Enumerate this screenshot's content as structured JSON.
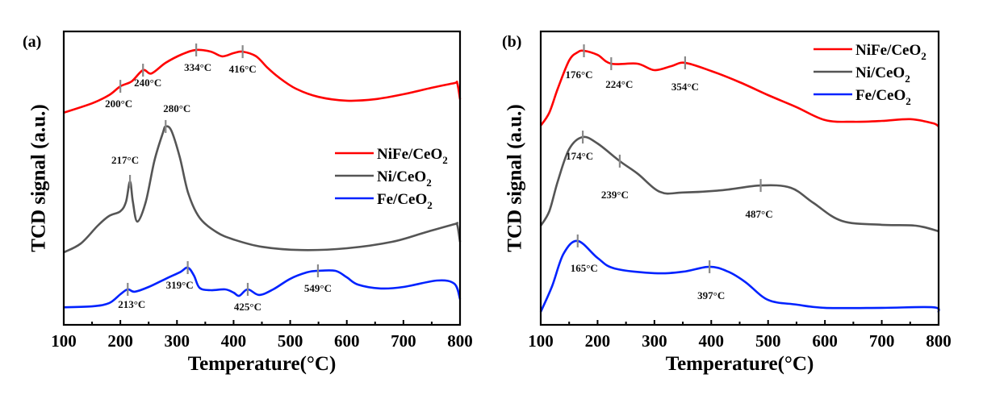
{
  "chart_data": [
    {
      "type": "line",
      "panel_label": "(a)",
      "title": "",
      "xlabel": "Temperature(°C)",
      "ylabel": "TCD signal (a.u.)",
      "xlim": [
        100,
        800
      ],
      "ylim": [
        0,
        100
      ],
      "xticks": [
        100,
        200,
        300,
        400,
        500,
        600,
        700,
        800
      ],
      "yticks": [],
      "grid": false,
      "legend_position": "center-right",
      "series": [
        {
          "name": "NiFe/CeO2",
          "color": "#ff0000",
          "x": [
            100,
            150,
            180,
            200,
            220,
            240,
            255,
            280,
            310,
            334,
            360,
            380,
            400,
            416,
            440,
            460,
            480,
            510,
            550,
            600,
            650,
            700,
            750,
            790,
            795,
            800
          ],
          "y": [
            72.3,
            75.5,
            78.3,
            81.3,
            83.0,
            86.8,
            85.7,
            89.3,
            92.3,
            93.7,
            93.1,
            91.5,
            92.6,
            93.1,
            91.5,
            87.6,
            84.3,
            80.5,
            77.7,
            76.4,
            76.9,
            78.6,
            80.8,
            82.4,
            82.4,
            76.9
          ],
          "peaks": [
            {
              "x": 200,
              "label": "200°C",
              "pos": "below"
            },
            {
              "x": 240,
              "label": "240°C",
              "pos": "below"
            },
            {
              "x": 334,
              "label": "334°C",
              "pos": "below"
            },
            {
              "x": 416,
              "label": "416°C",
              "pos": "below"
            }
          ]
        },
        {
          "name": "Ni/CeO2",
          "color": "#555555",
          "x": [
            100,
            130,
            160,
            180,
            200,
            210,
            217,
            222,
            230,
            245,
            260,
            275,
            280,
            290,
            305,
            320,
            340,
            370,
            400,
            450,
            520,
            600,
            680,
            740,
            790,
            795,
            800
          ],
          "y": [
            24.7,
            27.7,
            33.8,
            37.1,
            38.7,
            42.0,
            48.9,
            42.0,
            35.2,
            42.0,
            55.8,
            65.4,
            67.6,
            66.2,
            57.1,
            44.8,
            36.5,
            31.6,
            29.1,
            26.6,
            25.5,
            26.1,
            28.3,
            31.6,
            34.3,
            34.1,
            28.3
          ],
          "peaks": [
            {
              "x": 217,
              "label": "217°C",
              "pos": "above"
            },
            {
              "x": 280,
              "label": "280°C",
              "pos": "above"
            }
          ]
        },
        {
          "name": "Fe/CeO2",
          "color": "#0022ff",
          "x": [
            100,
            150,
            180,
            200,
            213,
            225,
            250,
            280,
            305,
            319,
            330,
            340,
            360,
            385,
            400,
            410,
            425,
            445,
            470,
            500,
            530,
            549,
            580,
            600,
            620,
            660,
            700,
            760,
            790,
            800
          ],
          "y": [
            6.0,
            6.3,
            7.4,
            10.4,
            12.1,
            11.3,
            12.9,
            15.7,
            17.9,
            19.5,
            16.8,
            12.6,
            11.8,
            12.1,
            11.0,
            9.9,
            12.1,
            10.2,
            12.1,
            15.7,
            17.9,
            18.4,
            18.4,
            16.2,
            13.7,
            12.4,
            12.9,
            15.1,
            14.0,
            8.8
          ],
          "peaks": [
            {
              "x": 213,
              "label": "213°C",
              "pos": "below"
            },
            {
              "x": 319,
              "label": "319°C",
              "pos": "below"
            },
            {
              "x": 425,
              "label": "425°C",
              "pos": "below"
            },
            {
              "x": 549,
              "label": "549°C",
              "pos": "below"
            }
          ]
        }
      ]
    },
    {
      "type": "line",
      "panel_label": "(b)",
      "title": "",
      "xlabel": "Temperature(°C)",
      "ylabel": "TCD signal (a.u.)",
      "xlim": [
        100,
        800
      ],
      "ylim": [
        0,
        100
      ],
      "xticks": [
        100,
        200,
        300,
        400,
        500,
        600,
        700,
        800
      ],
      "yticks": [],
      "grid": false,
      "legend_position": "top-right",
      "series": [
        {
          "name": "NiFe/CeO2",
          "color": "#ff0000",
          "x": [
            100,
            115,
            130,
            150,
            165,
            176,
            200,
            224,
            270,
            300,
            330,
            354,
            400,
            450,
            500,
            550,
            600,
            650,
            700,
            750,
            790,
            800
          ],
          "y": [
            67.9,
            72.3,
            80.5,
            90.1,
            92.9,
            93.4,
            92.0,
            89.0,
            89.0,
            86.8,
            88.2,
            89.3,
            86.5,
            82.7,
            78.3,
            74.2,
            69.8,
            69.2,
            69.5,
            70.1,
            68.7,
            67.6
          ],
          "peaks": [
            {
              "x": 176,
              "label": "176°C",
              "pos": "below"
            },
            {
              "x": 224,
              "label": "224°C",
              "pos": "below"
            },
            {
              "x": 354,
              "label": "354°C",
              "pos": "below"
            }
          ]
        },
        {
          "name": "Ni/CeO2",
          "color": "#555555",
          "x": [
            100,
            115,
            130,
            150,
            174,
            200,
            239,
            270,
            310,
            350,
            420,
            487,
            540,
            580,
            630,
            700,
            760,
            800
          ],
          "y": [
            33.8,
            38.7,
            48.9,
            59.9,
            64.0,
            61.8,
            55.8,
            51.6,
            45.3,
            45.1,
            45.9,
            47.5,
            46.7,
            41.5,
            35.4,
            34.1,
            33.8,
            31.9
          ],
          "peaks": [
            {
              "x": 174,
              "label": "174°C",
              "pos": "below"
            },
            {
              "x": 239,
              "label": "239°C",
              "pos": "below"
            },
            {
              "x": 487,
              "label": "487°C",
              "pos": "below"
            }
          ]
        },
        {
          "name": "Fe/CeO2",
          "color": "#0022ff",
          "x": [
            100,
            120,
            140,
            165,
            200,
            230,
            300,
            350,
            397,
            430,
            460,
            500,
            550,
            600,
            700,
            790,
            800
          ],
          "y": [
            4.4,
            13.2,
            24.2,
            28.6,
            22.8,
            19.2,
            17.6,
            18.1,
            19.8,
            18.1,
            14.6,
            8.5,
            6.9,
            5.8,
            5.8,
            6.0,
            4.4
          ],
          "peaks": [
            {
              "x": 165,
              "label": "165°C",
              "pos": "below"
            },
            {
              "x": 397,
              "label": "397°C",
              "pos": "below"
            }
          ]
        }
      ]
    }
  ]
}
